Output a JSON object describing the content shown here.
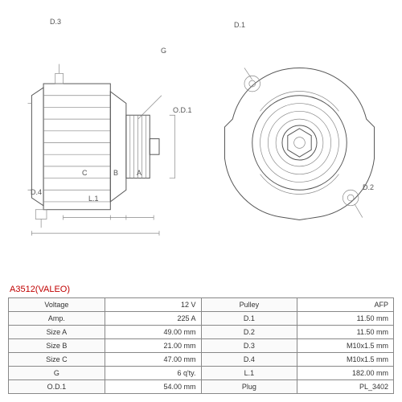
{
  "part": {
    "title": "A3512(VALEO)",
    "title_color": "#c00000"
  },
  "diagram": {
    "left_labels": {
      "d3": "D.3",
      "d4": "D.4",
      "g": "G",
      "od1": "O.D.1",
      "b": "B",
      "c": "C",
      "a": "A",
      "l1": "L.1"
    },
    "right_labels": {
      "d1": "D.1",
      "d2": "D.2"
    },
    "stroke_color": "#555555",
    "thin_color": "#888888",
    "background": "#ffffff"
  },
  "specs": {
    "rows": [
      {
        "l_label": "Voltage",
        "l_value": "12 V",
        "r_label": "Pulley",
        "r_value": "AFP"
      },
      {
        "l_label": "Amp.",
        "l_value": "225 A",
        "r_label": "D.1",
        "r_value": "11.50 mm"
      },
      {
        "l_label": "Size A",
        "l_value": "49.00 mm",
        "r_label": "D.2",
        "r_value": "11.50 mm"
      },
      {
        "l_label": "Size B",
        "l_value": "21.00 mm",
        "r_label": "D.3",
        "r_value": "M10x1.5 mm"
      },
      {
        "l_label": "Size C",
        "l_value": "47.00 mm",
        "r_label": "D.4",
        "r_value": "M10x1.5 mm"
      },
      {
        "l_label": "G",
        "l_value": "6 q'ty.",
        "r_label": "L.1",
        "r_value": "182.00 mm"
      },
      {
        "l_label": "O.D.1",
        "l_value": "54.00 mm",
        "r_label": "Plug",
        "r_value": "PL_3402"
      }
    ],
    "label_bg": "#fafafa",
    "border_color": "#888888",
    "text_color": "#333333",
    "fontsize": 9
  }
}
